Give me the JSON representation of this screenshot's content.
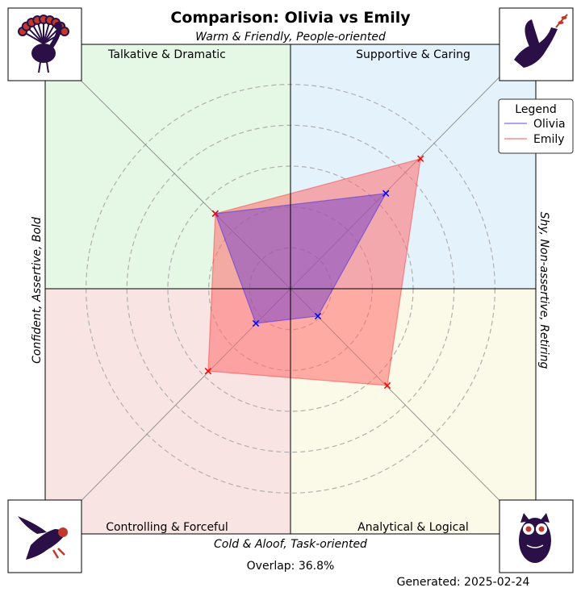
{
  "chart_data": {
    "type": "radar",
    "title": "Comparison: Olivia vs Emily",
    "axes": {
      "top": "Warm & Friendly, People-oriented",
      "bottom": "Cold & Aloof, Task-oriented",
      "left": "Confident, Assertive, Bold",
      "right": "Shy, Non-assertive, Retiring"
    },
    "quadrants": [
      {
        "label": "Talkative & Dramatic",
        "color": "#e5f7e5",
        "icon": "peacock-icon",
        "spoke": "upper-left"
      },
      {
        "label": "Supportive & Caring",
        "color": "#e4f2fc",
        "icon": "dove-icon",
        "spoke": "upper-right"
      },
      {
        "label": "Controlling & Forceful",
        "color": "#f9e4e4",
        "icon": "eagle-icon",
        "spoke": "lower-left"
      },
      {
        "label": "Analytical & Logical",
        "color": "#fbf9e7",
        "icon": "owl-icon",
        "spoke": "lower-right"
      }
    ],
    "radial_max": 6,
    "rings": [
      1,
      2,
      3,
      4,
      5
    ],
    "series": [
      {
        "name": "Olivia",
        "color": "#0000ff",
        "fill": "#7b47c9",
        "values": {
          "upper-left": 2.6,
          "upper-right": 3.3,
          "lower-right": 0.95,
          "lower-left": 1.2
        }
      },
      {
        "name": "Emily",
        "color": "#ff0000",
        "fill": "#ff6b6b",
        "values": {
          "upper-left": 2.6,
          "upper-right": 4.5,
          "lower-right": 3.35,
          "lower-left": 2.85
        }
      }
    ],
    "legend": {
      "title": "Legend",
      "position": "top-right"
    },
    "annotations": {
      "overlap": "Overlap: 36.8%",
      "generated": "Generated: 2025-02-24"
    }
  }
}
